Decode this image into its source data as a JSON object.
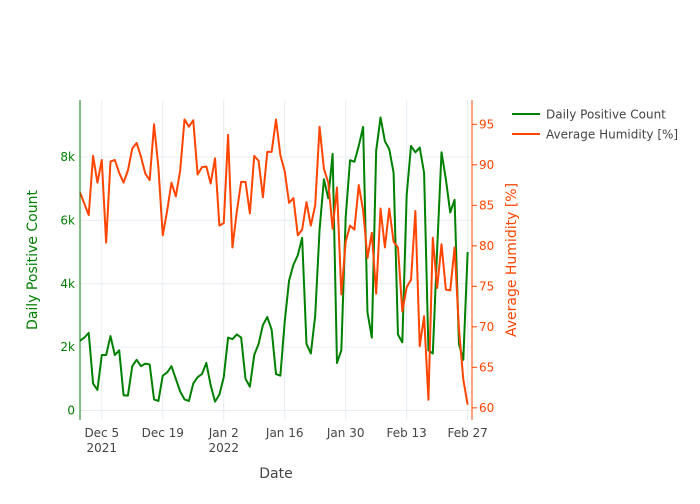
{
  "chart_data": {
    "type": "line",
    "xlabel": "Date",
    "x_start": "2021-11-30",
    "x_end": "2022-02-28",
    "x_ticks": [
      {
        "date": "2021-12-05",
        "label": "Dec 5",
        "sub": "2021"
      },
      {
        "date": "2021-12-19",
        "label": "Dec 19",
        "sub": ""
      },
      {
        "date": "2022-01-02",
        "label": "Jan 2",
        "sub": "2022"
      },
      {
        "date": "2022-01-16",
        "label": "Jan 16",
        "sub": ""
      },
      {
        "date": "2022-01-30",
        "label": "Jan 30",
        "sub": ""
      },
      {
        "date": "2022-02-13",
        "label": "Feb 13",
        "sub": ""
      },
      {
        "date": "2022-02-27",
        "label": "Feb 27",
        "sub": ""
      }
    ],
    "y_left": {
      "label": "Daily Positive Count",
      "range": [
        -300,
        9800
      ],
      "ticks": [
        0,
        2000,
        4000,
        6000,
        8000
      ],
      "tick_labels": [
        "0",
        "2k",
        "4k",
        "6k",
        "8k"
      ],
      "color": "#008000"
    },
    "y_right": {
      "label": "Average Humidity [%]",
      "range": [
        58.5,
        98
      ],
      "ticks": [
        60,
        65,
        70,
        75,
        80,
        85,
        90,
        95
      ],
      "tick_labels": [
        "60",
        "65",
        "70",
        "75",
        "80",
        "85",
        "90",
        "95"
      ],
      "color": "#ff4500"
    },
    "series": [
      {
        "name": "Daily Positive Count",
        "axis": "left",
        "color": "#008000",
        "values": [
          2200,
          2300,
          2450,
          850,
          650,
          1750,
          1750,
          2350,
          1750,
          1900,
          480,
          470,
          1400,
          1600,
          1400,
          1480,
          1450,
          350,
          300,
          1100,
          1200,
          1400,
          1000,
          600,
          350,
          300,
          850,
          1050,
          1150,
          1500,
          800,
          280,
          500,
          1050,
          2300,
          2250,
          2400,
          2300,
          1000,
          750,
          1750,
          2100,
          2700,
          2950,
          2550,
          1150,
          1100,
          2800,
          4100,
          4600,
          4900,
          5450,
          2100,
          1800,
          3000,
          5700,
          7300,
          6700,
          8100,
          1500,
          1900,
          6100,
          7900,
          7850,
          8350,
          8950,
          3100,
          2300,
          8200,
          9250,
          8500,
          8250,
          7500,
          2400,
          2150,
          6800,
          8350,
          8150,
          8300,
          7500,
          1900,
          1800,
          5100,
          8150,
          7300,
          6250,
          6650,
          2100,
          1600,
          5000
        ]
      },
      {
        "name": "Average Humidity [%]",
        "axis": "right",
        "color": "#ff4500",
        "values": [
          86.6,
          85.2,
          83.8,
          91.1,
          87.8,
          90.6,
          80.4,
          90.4,
          90.6,
          89.0,
          87.8,
          89.3,
          92.0,
          92.7,
          91.0,
          88.9,
          88.1,
          95.0,
          89.7,
          81.3,
          84.3,
          87.8,
          86.1,
          89.3,
          95.6,
          94.7,
          95.5,
          88.8,
          89.7,
          89.8,
          87.7,
          90.8,
          82.5,
          82.8,
          93.7,
          79.8,
          84.2,
          87.9,
          87.9,
          84.0,
          91.1,
          90.5,
          86.0,
          91.6,
          91.6,
          95.6,
          91.2,
          89.2,
          85.3,
          85.9,
          81.3,
          82.0,
          85.4,
          82.5,
          85.0,
          94.7,
          89.5,
          87.8,
          82.1,
          87.2,
          74.0,
          80.5,
          82.5,
          82.0,
          87.5,
          84.4,
          78.5,
          81.6,
          74.1,
          84.6,
          79.8,
          84.6,
          80.5,
          79.8,
          71.9,
          74.9,
          75.8,
          84.3,
          67.6,
          71.3,
          61.0,
          81.0,
          74.8,
          80.2,
          74.6,
          74.5,
          79.8,
          69.8,
          63.5,
          60.4
        ]
      }
    ],
    "legend": {
      "placement": "top-right"
    },
    "grid": true
  }
}
